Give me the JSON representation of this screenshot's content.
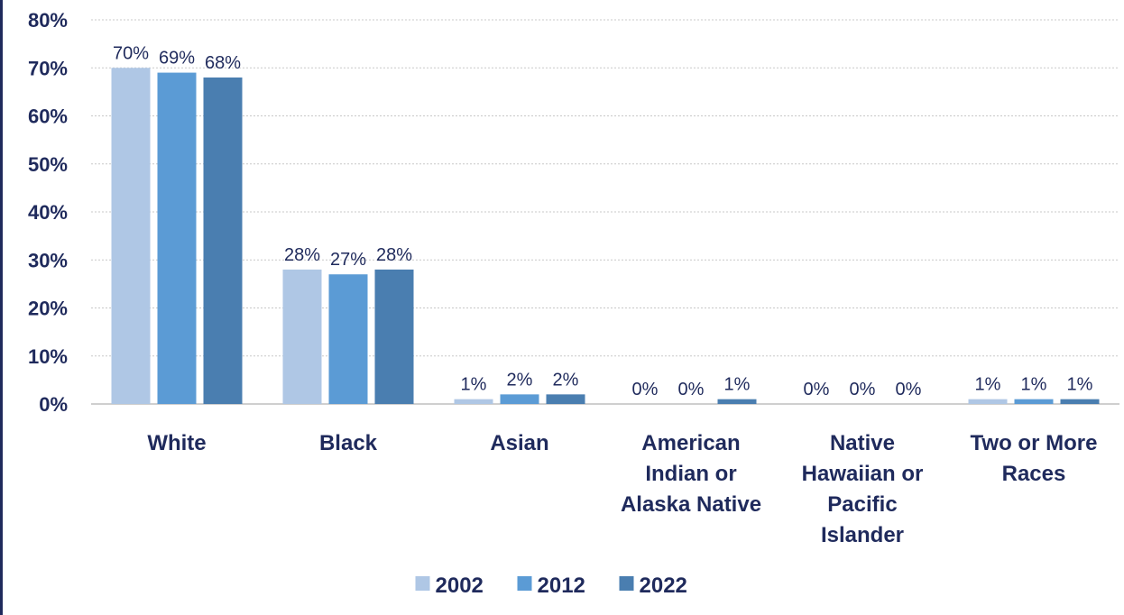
{
  "chart_data": {
    "type": "bar",
    "categories": [
      [
        "White"
      ],
      [
        "Black"
      ],
      [
        "Asian"
      ],
      [
        "American",
        "Indian or",
        "Alaska Native"
      ],
      [
        "Native",
        "Hawaiian or",
        "Pacific",
        "Islander"
      ],
      [
        "Two or More",
        "Races"
      ]
    ],
    "series": [
      {
        "name": "2002",
        "color": "#afc7e5",
        "values": [
          70,
          28,
          1,
          0,
          0,
          1
        ]
      },
      {
        "name": "2012",
        "color": "#5b9bd5",
        "values": [
          69,
          27,
          2,
          0,
          0,
          1
        ]
      },
      {
        "name": "2022",
        "color": "#4a7eb0",
        "values": [
          68,
          28,
          2,
          1,
          0,
          1
        ]
      }
    ],
    "data_labels": [
      [
        "70%",
        "28%",
        "1%",
        "0%",
        "0%",
        "1%"
      ],
      [
        "69%",
        "27%",
        "2%",
        "0%",
        "0%",
        "1%"
      ],
      [
        "68%",
        "28%",
        "2%",
        "1%",
        "0%",
        "1%"
      ]
    ],
    "y_ticks": [
      "0%",
      "10%",
      "20%",
      "30%",
      "40%",
      "50%",
      "60%",
      "70%",
      "80%"
    ],
    "ylim": [
      0,
      80
    ],
    "grid": true,
    "legend_position": "bottom",
    "title": "",
    "xlabel": "",
    "ylabel": ""
  }
}
